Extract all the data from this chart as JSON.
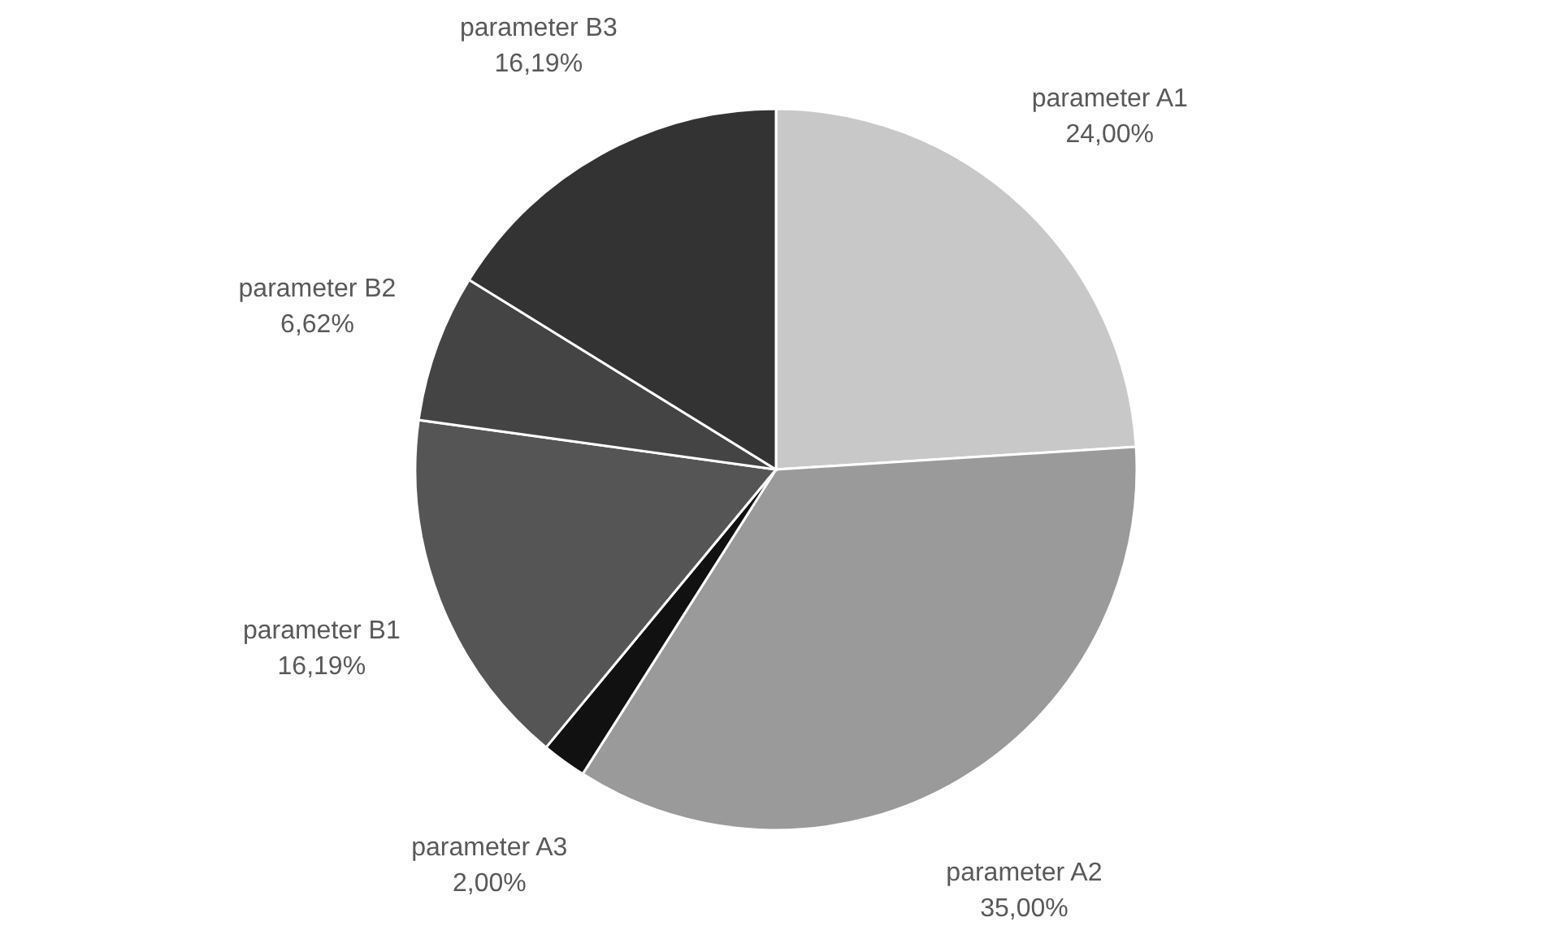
{
  "chart_data": {
    "type": "pie",
    "categories": [
      "parameter A1",
      "parameter A2",
      "parameter A3",
      "parameter B1",
      "parameter B2",
      "parameter B3"
    ],
    "values": [
      24,
      35,
      2,
      16.19,
      6.62,
      16.19
    ],
    "colors": [
      "#c8c8c8",
      "#9a9a9a",
      "#111111",
      "#555555",
      "#444444",
      "#333333"
    ],
    "value_labels": [
      "24,00%",
      "35,00%",
      "2,00%",
      "16,19%",
      "6,62%",
      "16,19%"
    ]
  }
}
